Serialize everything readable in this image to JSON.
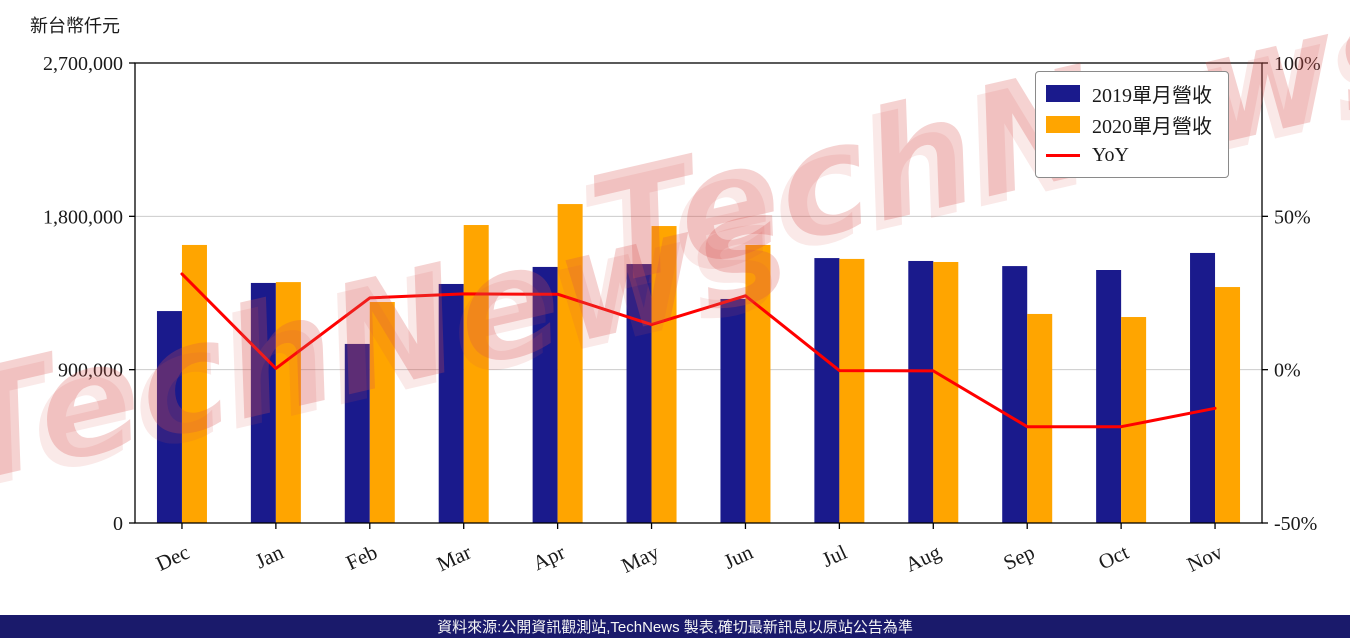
{
  "unit_label": "新台幣仟元",
  "watermark": "TechNews",
  "footer": {
    "text": "資料來源:公開資訊觀測站,TechNews 製表,確切最新訊息以原站公告為準"
  },
  "colors": {
    "bar_2019": "#1A1A8C",
    "bar_2020": "#FFA500",
    "yoy_line": "#FF0000",
    "grid": "#CCCCCC",
    "axis": "#000000",
    "footer_bg": "#1A1A6B",
    "watermark": "#D9534F",
    "text": "#1A1A1A"
  },
  "legend": [
    {
      "label": "2019單月營收",
      "color": "#1A1A8C",
      "swatch": "box"
    },
    {
      "label": "2020單月營收",
      "color": "#FFA500",
      "swatch": "box"
    },
    {
      "label": "YoY",
      "color": "#FF0000",
      "swatch": "line"
    }
  ],
  "chart_data": {
    "type": "bar+line",
    "categories": [
      "Dec",
      "Jan",
      "Feb",
      "Mar",
      "Apr",
      "May",
      "Jun",
      "Jul",
      "Aug",
      "Sep",
      "Oct",
      "Nov"
    ],
    "series": [
      {
        "name": "2019單月營收",
        "type": "bar",
        "axis": "left",
        "color": "#1A1A8C",
        "values": [
          1244000,
          1409000,
          1051000,
          1403000,
          1503000,
          1520000,
          1315000,
          1555000,
          1538000,
          1508000,
          1485000,
          1585000
        ]
      },
      {
        "name": "2020單月營收",
        "type": "bar",
        "axis": "left",
        "color": "#FFA500",
        "values": [
          1632000,
          1414000,
          1297000,
          1749000,
          1872000,
          1743000,
          1632000,
          1550000,
          1532000,
          1227000,
          1209000,
          1385000
        ]
      },
      {
        "name": "YoY",
        "type": "line",
        "axis": "right",
        "color": "#FF0000",
        "values": [
          31.2,
          0.4,
          23.4,
          24.7,
          24.6,
          14.7,
          24.1,
          -0.3,
          -0.4,
          -18.6,
          -18.6,
          -12.6
        ]
      }
    ],
    "left_axis": {
      "range": [
        0,
        2700000
      ],
      "ticks": [
        0,
        900000,
        1800000,
        2700000
      ],
      "tick_labels": [
        "0",
        "900,000",
        "1,800,000",
        "2,700,000"
      ]
    },
    "right_axis": {
      "range": [
        -50,
        100
      ],
      "ticks": [
        -50,
        0,
        50,
        100
      ],
      "tick_labels": [
        "-50%",
        "0%",
        "50%",
        "100%"
      ]
    },
    "grid": true,
    "legend_position": "upper right"
  }
}
